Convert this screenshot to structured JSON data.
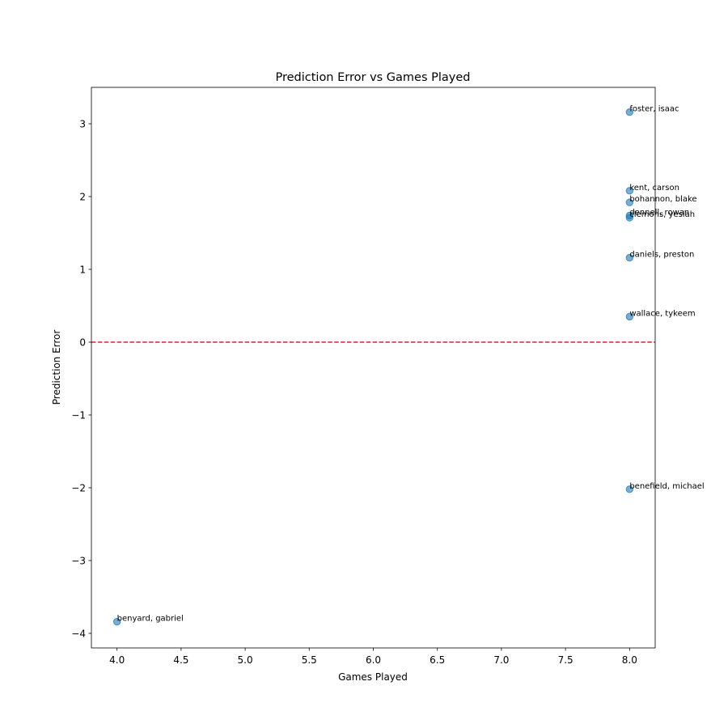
{
  "chart_data": {
    "type": "scatter",
    "title": "Prediction Error vs Games Played",
    "xlabel": "Games Played",
    "ylabel": "Prediction Error",
    "xlim": [
      3.8,
      8.2
    ],
    "ylim": [
      -4.2,
      3.5
    ],
    "xticks": [
      4.0,
      4.5,
      5.0,
      5.5,
      6.0,
      6.5,
      7.0,
      7.5,
      8.0
    ],
    "xtick_labels": [
      "4.0",
      "4.5",
      "5.0",
      "5.5",
      "6.0",
      "6.5",
      "7.0",
      "7.5",
      "8.0"
    ],
    "yticks": [
      -4,
      -3,
      -2,
      -1,
      0,
      1,
      2,
      3
    ],
    "ytick_labels": [
      "−4",
      "−3",
      "−2",
      "−1",
      "0",
      "1",
      "2",
      "3"
    ],
    "grid": false,
    "reference_line": {
      "y": 0,
      "color": "#d62728",
      "style": "dashed"
    },
    "point_color": "#1f77b4",
    "points": [
      {
        "x": 8,
        "y": 3.16,
        "label": "foster, isaac"
      },
      {
        "x": 8,
        "y": 2.08,
        "label": "kent, carson"
      },
      {
        "x": 8,
        "y": 1.92,
        "label": "bohannon, blake"
      },
      {
        "x": 8,
        "y": 1.74,
        "label": "dennell, rowan"
      },
      {
        "x": 8,
        "y": 1.71,
        "label": "clemons, yesiah"
      },
      {
        "x": 8,
        "y": 1.16,
        "label": "daniels, preston"
      },
      {
        "x": 8,
        "y": 0.35,
        "label": "wallace, tykeem"
      },
      {
        "x": 8,
        "y": -2.02,
        "label": "benefield, michael"
      },
      {
        "x": 4,
        "y": -3.84,
        "label": "benyard, gabriel"
      }
    ]
  }
}
